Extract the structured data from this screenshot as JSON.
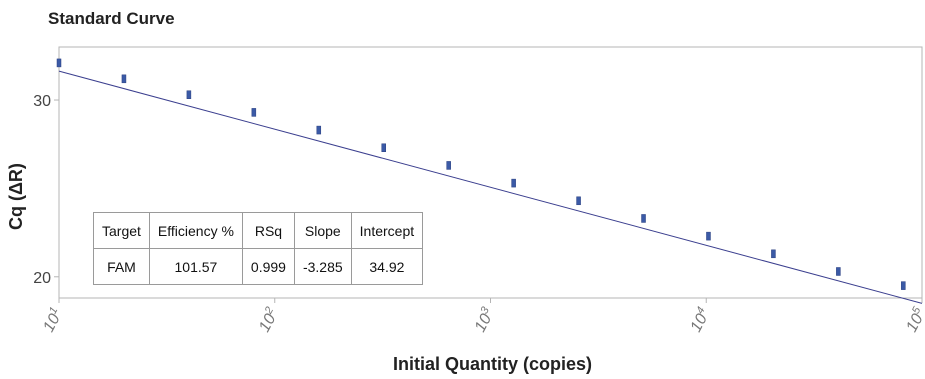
{
  "chart_data": {
    "type": "scatter",
    "title": "Standard Curve",
    "xlabel": "Initial Quantity (copies)",
    "ylabel": "Cq (ΔR)",
    "x_scale": "log",
    "xlim": [
      10,
      100000
    ],
    "ylim": [
      18.8,
      33
    ],
    "grid": false,
    "y_ticks": [
      {
        "value": 20,
        "label": "20"
      },
      {
        "value": 30,
        "label": "30"
      }
    ],
    "x_ticks": [
      {
        "value": 10,
        "base": "10",
        "exp": "1"
      },
      {
        "value": 100,
        "base": "10",
        "exp": "2"
      },
      {
        "value": 1000,
        "base": "10",
        "exp": "3"
      },
      {
        "value": 10000,
        "base": "10",
        "exp": "4"
      },
      {
        "value": 100000,
        "base": "10",
        "exp": "5"
      }
    ],
    "series": [
      {
        "color": "#3b5aa6",
        "points": [
          {
            "x": 10,
            "y": 32.1
          },
          {
            "x": 20,
            "y": 31.2
          },
          {
            "x": 40,
            "y": 30.3
          },
          {
            "x": 80,
            "y": 29.3
          },
          {
            "x": 160,
            "y": 28.3
          },
          {
            "x": 320,
            "y": 27.3
          },
          {
            "x": 640,
            "y": 26.3
          },
          {
            "x": 1280,
            "y": 25.3
          },
          {
            "x": 2560,
            "y": 24.3
          },
          {
            "x": 5120,
            "y": 23.3
          },
          {
            "x": 10240,
            "y": 22.3
          },
          {
            "x": 20480,
            "y": 21.3
          },
          {
            "x": 40960,
            "y": 20.3
          },
          {
            "x": 81920,
            "y": 19.5
          }
        ]
      }
    ],
    "fit_line": {
      "color": "#3b3f8f",
      "slope": -3.285,
      "intercept": 34.92
    }
  },
  "stats_table": {
    "headers": [
      "Target",
      "Efficiency %",
      "RSq",
      "Slope",
      "Intercept"
    ],
    "row": [
      "FAM",
      "101.57",
      "0.999",
      "-3.285",
      "34.92"
    ]
  }
}
